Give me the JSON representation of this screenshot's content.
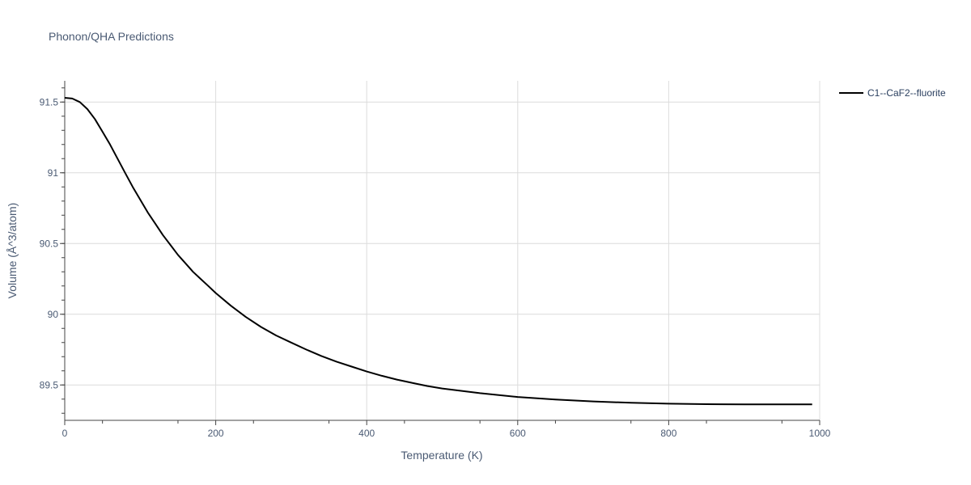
{
  "chart_data": {
    "type": "line",
    "title": "Phonon/QHA Predictions",
    "xlabel": "Temperature (K)",
    "ylabel": "Volume (Å^3/atom)",
    "xlim": [
      0,
      1000
    ],
    "ylim": [
      89.25,
      91.65
    ],
    "x_ticks": [
      0,
      200,
      400,
      600,
      800,
      1000
    ],
    "y_ticks": [
      89.5,
      90,
      90.5,
      91,
      91.5
    ],
    "grid": true,
    "legend_position": "top-right",
    "series": [
      {
        "name": "C1--CaF2--fluorite",
        "color": "#000000",
        "x": [
          0,
          10,
          20,
          30,
          40,
          50,
          60,
          70,
          80,
          90,
          100,
          110,
          120,
          130,
          140,
          150,
          160,
          170,
          180,
          190,
          200,
          220,
          240,
          260,
          280,
          300,
          320,
          340,
          360,
          380,
          400,
          420,
          440,
          460,
          480,
          500,
          550,
          600,
          650,
          700,
          750,
          800,
          850,
          900,
          950,
          990
        ],
        "y": [
          91.53,
          91.525,
          91.5,
          91.45,
          91.38,
          91.29,
          91.2,
          91.1,
          91.0,
          90.9,
          90.81,
          90.72,
          90.64,
          90.56,
          90.49,
          90.42,
          90.36,
          90.3,
          90.25,
          90.2,
          90.15,
          90.06,
          89.98,
          89.91,
          89.85,
          89.8,
          89.75,
          89.705,
          89.665,
          89.63,
          89.595,
          89.565,
          89.538,
          89.515,
          89.493,
          89.475,
          89.442,
          89.415,
          89.397,
          89.384,
          89.374,
          89.368,
          89.364,
          89.363,
          89.363,
          89.363
        ]
      }
    ]
  }
}
